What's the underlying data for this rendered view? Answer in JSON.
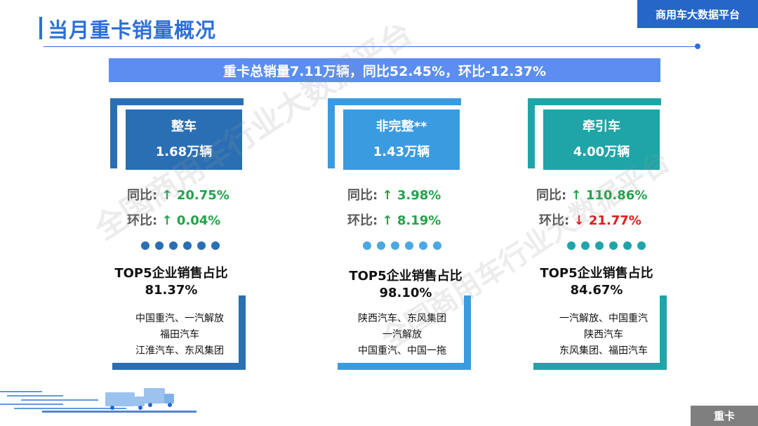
{
  "header": {
    "title": "当月重卡销量概况",
    "platform": "商用车大数据平台"
  },
  "summary": "重卡总销量7.11万辆，同比52.45%，环比-12.37%",
  "watermark": "全国商用车行业大数据平台",
  "colors": {
    "accent": "#2f6fd6",
    "col1": "#2a6fb3",
    "col2": "#3b9be0",
    "col3": "#1fa5a8",
    "up": "#22a24a",
    "down": "#e01b1b"
  },
  "columns": [
    {
      "name": "整车",
      "volume": "1.68万辆",
      "yoy_label": "同比:",
      "yoy_arrow": "↑",
      "yoy_value": "20.75%",
      "mom_label": "环比:",
      "mom_arrow": "↑",
      "mom_value": "0.04%",
      "top5_title": "TOP5企业销售占比",
      "top5_value": "81.37%",
      "companies": [
        "中国重汽、一汽解放",
        "福田汽车",
        "江淮汽车、东风集团"
      ]
    },
    {
      "name": "非完整**",
      "volume": "1.43万辆",
      "yoy_label": "同比:",
      "yoy_arrow": "↑",
      "yoy_value": "3.98%",
      "mom_label": "环比:",
      "mom_arrow": "↑",
      "mom_value": "8.19%",
      "top5_title": "TOP5企业销售占比",
      "top5_value": "98.10%",
      "companies": [
        "陕西汽车、东风集团",
        "一汽解放",
        "中国重汽、中国一拖"
      ]
    },
    {
      "name": "牵引车",
      "volume": "4.00万辆",
      "yoy_label": "同比:",
      "yoy_arrow": "↑",
      "yoy_value": "110.86%",
      "mom_label": "环比:",
      "mom_arrow": "↓",
      "mom_value": "21.77%",
      "top5_title": "TOP5企业销售占比",
      "top5_value": "84.67%",
      "companies": [
        "一汽解放、中国重汽",
        "陕西汽车",
        "东风集团、福田汽车"
      ]
    }
  ],
  "footer": {
    "tag": "重卡"
  }
}
